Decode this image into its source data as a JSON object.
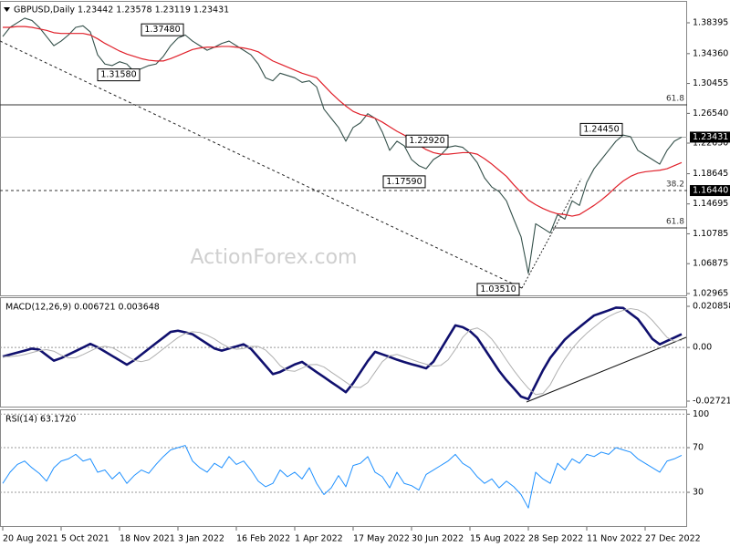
{
  "header": "GBPUSD,Daily  1.23442 1.23578 1.23119 1.23431",
  "watermark": "ActionForex.com",
  "chart_data": [
    {
      "type": "line",
      "title": "GBPUSD,Daily",
      "ylim": [
        1.02607,
        1.41139
      ],
      "yticks": [
        1.38395,
        {
          "value": 1.3436,
          "label": "1.34360"
        },
        1.30455,
        {
          "value": 1.2654,
          "label": "1.26540"
        },
        {
          "value": 1.2265,
          "label": "1.22650"
        },
        1.18645,
        1.14695,
        1.10785,
        1.06875,
        1.02965
      ],
      "series": [
        {
          "name": "GBPUSD",
          "color": "#34504a",
          "values": [
            1.366,
            1.378,
            1.384,
            1.39,
            1.387,
            1.378,
            1.366,
            1.354,
            1.36,
            1.368,
            1.378,
            1.38,
            1.372,
            1.342,
            1.33,
            1.328,
            1.333,
            1.33,
            1.32,
            1.324,
            1.328,
            1.33,
            1.34,
            1.354,
            1.364,
            1.368,
            1.36,
            1.354,
            1.348,
            1.352,
            1.357,
            1.36,
            1.354,
            1.348,
            1.342,
            1.33,
            1.312,
            1.308,
            1.318,
            1.315,
            1.312,
            1.306,
            1.308,
            1.3,
            1.271,
            1.259,
            1.247,
            1.229,
            1.247,
            1.253,
            1.265,
            1.259,
            1.241,
            1.217,
            1.229,
            1.223,
            1.205,
            1.197,
            1.193,
            1.205,
            1.211,
            1.221,
            1.223,
            1.221,
            1.213,
            1.201,
            1.181,
            1.169,
            1.163,
            1.151,
            1.127,
            1.104,
            1.056,
            1.121,
            1.115,
            1.109,
            1.133,
            1.127,
            1.151,
            1.145,
            1.175,
            1.193,
            1.205,
            1.217,
            1.229,
            1.237,
            1.235,
            1.217,
            1.211,
            1.205,
            1.199,
            1.217,
            1.229,
            1.23431
          ]
        },
        {
          "name": "MA",
          "color": "#e0202a",
          "values": [
            1.378,
            1.378,
            1.379,
            1.379,
            1.378,
            1.376,
            1.374,
            1.371,
            1.37,
            1.37,
            1.37,
            1.37,
            1.368,
            1.363,
            1.357,
            1.352,
            1.347,
            1.343,
            1.34,
            1.337,
            1.335,
            1.334,
            1.334,
            1.337,
            1.341,
            1.345,
            1.349,
            1.351,
            1.352,
            1.352,
            1.353,
            1.353,
            1.352,
            1.351,
            1.349,
            1.346,
            1.34,
            1.334,
            1.33,
            1.326,
            1.322,
            1.318,
            1.315,
            1.312,
            1.302,
            1.292,
            1.283,
            1.275,
            1.268,
            1.264,
            1.262,
            1.259,
            1.254,
            1.248,
            1.242,
            1.237,
            1.23,
            1.224,
            1.218,
            1.214,
            1.212,
            1.212,
            1.213,
            1.214,
            1.214,
            1.212,
            1.206,
            1.199,
            1.191,
            1.183,
            1.172,
            1.162,
            1.152,
            1.146,
            1.141,
            1.137,
            1.134,
            1.133,
            1.131,
            1.133,
            1.139,
            1.145,
            1.152,
            1.16,
            1.169,
            1.177,
            1.183,
            1.187,
            1.189,
            1.19,
            1.191,
            1.193,
            1.197,
            1.201
          ]
        }
      ],
      "current_price": {
        "value": 1.23431,
        "label": "1.23431"
      },
      "levels": [
        {
          "value": 1.2766,
          "label": "61.8"
        },
        {
          "value": 1.1644,
          "label": "38.2",
          "axis_label": "1.16440"
        },
        {
          "value": 1.1156,
          "label": "61.8"
        }
      ],
      "annotations": [
        {
          "value": 1.3748,
          "label": "1.37480"
        },
        {
          "value": 1.3158,
          "label": "1.31580"
        },
        {
          "value": 1.2292,
          "label": "1.22920"
        },
        {
          "value": 1.1759,
          "label": "1.17590"
        },
        {
          "value": 1.0351,
          "label": "1.03510"
        },
        {
          "value": 1.2445,
          "label": "1.24450"
        }
      ]
    },
    {
      "type": "line",
      "title": "MACD(12,26,9) 0.006721 0.003648",
      "ylim": [
        -0.03045,
        0.02502
      ],
      "yticks": [
        0.020858,
        {
          "value": 0,
          "label": "0.00"
        },
        -0.027213
      ],
      "series": [
        {
          "name": "MACD",
          "color": "#10106e",
          "values": [
            -0.0046,
            -0.0036,
            -0.0026,
            -0.0016,
            -0.0006,
            -0.0011,
            -0.0039,
            -0.0067,
            -0.0054,
            -0.0036,
            -0.0018,
            0,
            0.0018,
            0.0001,
            -0.0021,
            -0.0043,
            -0.0065,
            -0.0087,
            -0.0065,
            -0.0036,
            -0.0007,
            0.0022,
            0.005,
            0.0079,
            0.0085,
            0.0077,
            0.0067,
            0.0043,
            0.0019,
            -0.0005,
            -0.0016,
            -0.0005,
            0.0005,
            0.0016,
            -0.0007,
            -0.0049,
            -0.0092,
            -0.0135,
            -0.0124,
            -0.0105,
            -0.0086,
            -0.0073,
            -0.0099,
            -0.0125,
            -0.015,
            -0.0176,
            -0.0201,
            -0.0227,
            -0.0181,
            -0.0125,
            -0.0069,
            -0.0022,
            -0.0035,
            -0.0048,
            -0.0062,
            -0.0074,
            -0.0085,
            -0.0095,
            -0.0106,
            -0.0072,
            -0.001,
            0.0051,
            0.0112,
            0.0103,
            0.0083,
            0.0049,
            -0.0007,
            -0.0063,
            -0.0119,
            -0.0166,
            -0.0207,
            -0.0249,
            -0.0262,
            -0.0189,
            -0.0116,
            -0.0053,
            -0.0006,
            0.004,
            0.0073,
            0.0103,
            0.0133,
            0.0162,
            0.0175,
            0.0188,
            0.0202,
            0.02,
            0.0172,
            0.0144,
            0.0095,
            0.0043,
            0.0016,
            0.0033,
            0.005,
            0.006721
          ]
        },
        {
          "name": "Signal",
          "color": "#b0b0b0",
          "values": [
            -0.0046,
            -0.0046,
            -0.0043,
            -0.0036,
            -0.0026,
            -0.0016,
            -0.0011,
            -0.0019,
            -0.0039,
            -0.0053,
            -0.0052,
            -0.0036,
            -0.0018,
            0,
            0.0006,
            -0.0001,
            -0.0021,
            -0.0043,
            -0.0065,
            -0.0072,
            -0.0063,
            -0.0036,
            -0.0007,
            0.0022,
            0.005,
            0.0071,
            0.008,
            0.0076,
            0.0062,
            0.0043,
            0.0019,
            -0.0001,
            -0.0009,
            -0.0005,
            0.0005,
            0.0005,
            -0.0013,
            -0.0049,
            -0.0092,
            -0.0117,
            -0.0121,
            -0.0105,
            -0.0088,
            -0.0086,
            -0.0099,
            -0.0125,
            -0.015,
            -0.0176,
            -0.0201,
            -0.0203,
            -0.0178,
            -0.0125,
            -0.0072,
            -0.0042,
            -0.0035,
            -0.0048,
            -0.0061,
            -0.0074,
            -0.0085,
            -0.0095,
            -0.0091,
            -0.0063,
            -0.001,
            0.0051,
            0.0089,
            0.0099,
            0.0078,
            0.0042,
            -0.0007,
            -0.0063,
            -0.0116,
            -0.0164,
            -0.0207,
            -0.0239,
            -0.0233,
            -0.0189,
            -0.0119,
            -0.0058,
            -0.0006,
            0.0036,
            0.0072,
            0.0103,
            0.0133,
            0.0157,
            0.0175,
            0.0188,
            0.0197,
            0.0191,
            0.0172,
            0.0137,
            0.0094,
            0.0051,
            0.0031,
            0.003648
          ]
        }
      ]
    },
    {
      "type": "line",
      "title": "RSI(14) 63.1720",
      "ylim": [
        -1,
        103.5
      ],
      "yticks": [
        100,
        70,
        30
      ],
      "grid": true,
      "categories": [
        "20 Aug 2021",
        null,
        null,
        null,
        null,
        null,
        null,
        null,
        "5 Oct 2021",
        null,
        null,
        null,
        null,
        null,
        null,
        null,
        "18 Nov 2021",
        null,
        null,
        null,
        null,
        null,
        null,
        null,
        "3 Jan 2022",
        null,
        null,
        null,
        null,
        null,
        null,
        null,
        "16 Feb 2022",
        null,
        null,
        null,
        null,
        null,
        null,
        null,
        "1 Apr 2022",
        null,
        null,
        null,
        null,
        null,
        null,
        null,
        "17 May 2022",
        null,
        null,
        null,
        null,
        null,
        null,
        null,
        "30 Jun 2022",
        null,
        null,
        null,
        null,
        null,
        null,
        null,
        "15 Aug 2022",
        null,
        null,
        null,
        null,
        null,
        null,
        null,
        "28 Sep 2022",
        null,
        null,
        null,
        null,
        null,
        null,
        null,
        "11 Nov 2022",
        null,
        null,
        null,
        null,
        null,
        null,
        null,
        "27 Dec 2022",
        null,
        null,
        null,
        null,
        null
      ],
      "series": [
        {
          "name": "RSI",
          "color": "#1e90ff",
          "values": [
            38,
            48,
            55,
            58,
            52,
            47,
            40,
            52,
            58,
            60,
            64,
            58,
            60,
            48,
            50,
            42,
            48,
            38,
            45,
            50,
            47,
            55,
            62,
            68,
            70,
            72,
            58,
            52,
            48,
            56,
            52,
            62,
            55,
            58,
            50,
            40,
            35,
            38,
            50,
            44,
            48,
            42,
            52,
            38,
            28,
            34,
            45,
            35,
            54,
            56,
            62,
            48,
            44,
            34,
            48,
            38,
            36,
            32,
            46,
            50,
            54,
            58,
            64,
            56,
            52,
            44,
            38,
            42,
            34,
            40,
            35,
            28,
            16,
            48,
            42,
            38,
            56,
            50,
            60,
            56,
            64,
            62,
            66,
            64,
            70,
            68,
            66,
            60,
            56,
            52,
            48,
            58,
            60,
            63.172
          ]
        }
      ]
    }
  ]
}
